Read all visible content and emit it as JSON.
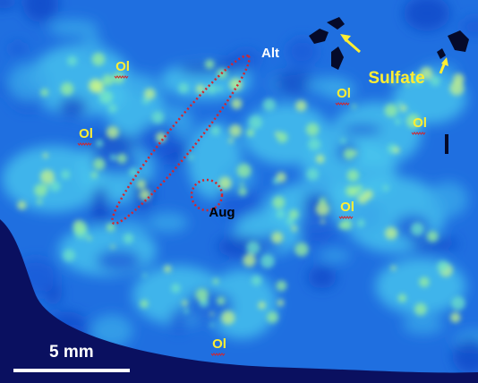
{
  "labels": [
    "Ol",
    "Ol",
    "Ol",
    "Ol",
    "Ol",
    "Ol",
    "Alt",
    "Aug",
    "Sulfate"
  ],
  "scale_bar": "5 mm"
}
